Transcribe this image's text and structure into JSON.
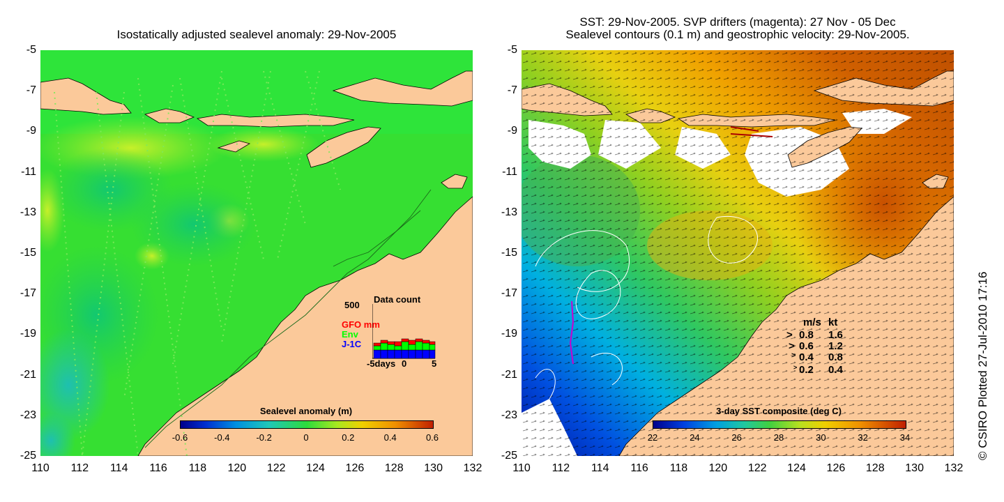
{
  "left_panel": {
    "title": "Isostatically adjusted sealevel anomaly: 29-Nov-2005",
    "colorbar": {
      "label": "Sealevel anomaly (m)",
      "ticks": [
        "-0.6",
        "-0.4",
        "-0.2",
        "0",
        "0.2",
        "0.4",
        "0.6"
      ]
    },
    "data_count": {
      "title": "Data count",
      "max_label": "500",
      "series": [
        "GFO mm",
        "Env",
        "J-1C"
      ],
      "series_colors": [
        "#ff0000",
        "#00ff00",
        "#0000ff"
      ],
      "x_start_label": "-5days",
      "x_mid_label": "0",
      "x_end_label": "5"
    }
  },
  "right_panel": {
    "title_line1": "SST: 29-Nov-2005. SVP drifters (magenta): 27 Nov - 05 Dec",
    "title_line2": "Sealevel contours (0.1 m) and geostrophic velocity: 29-Nov-2005.",
    "colorbar": {
      "label": "3-day SST composite (deg C)",
      "ticks": [
        "22",
        "24",
        "26",
        "28",
        "30",
        "32",
        "34"
      ]
    },
    "velocity_legend": {
      "header_ms": "m/s",
      "header_kt": "kt",
      "rows": [
        {
          "ms": "0.8",
          "kt": "1.6"
        },
        {
          "ms": "0.6",
          "kt": "1.2"
        },
        {
          "ms": "0.4",
          "kt": "0.8"
        },
        {
          "ms": "0.2",
          "kt": "0.4"
        }
      ]
    }
  },
  "axes": {
    "y_ticks": [
      "-5",
      "-7",
      "-9",
      "-11",
      "-13",
      "-15",
      "-17",
      "-19",
      "-21",
      "-23",
      "-25"
    ],
    "x_ticks": [
      "110",
      "112",
      "114",
      "116",
      "118",
      "120",
      "122",
      "124",
      "126",
      "128",
      "130",
      "132"
    ]
  },
  "credit": "© CSIRO Plotted 27-Jul-2010 17:16",
  "colors": {
    "land": "#fbc99a",
    "sea_level_green": "#2ddc3c",
    "missing_data": "#ffffff"
  }
}
